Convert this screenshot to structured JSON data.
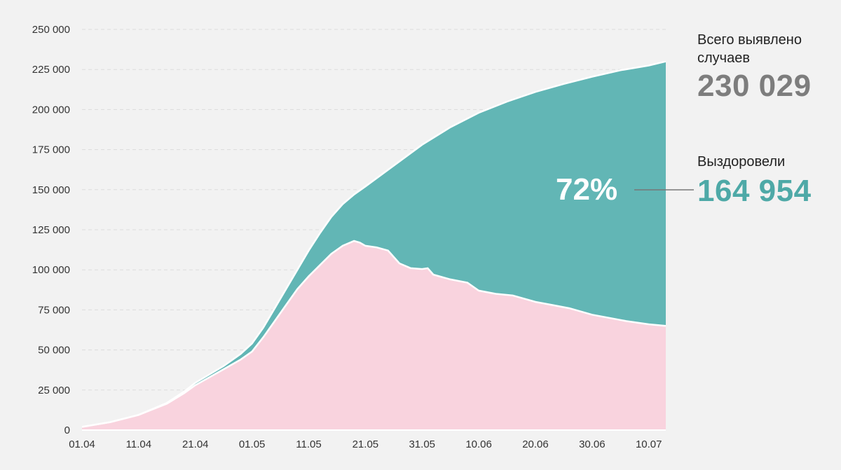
{
  "colors": {
    "background": "#f2f2f2",
    "active": "#f9d3de",
    "recovered": "#62b6b5",
    "total_text": "#7d7d7d",
    "recovered_text": "#4ea9a7",
    "grid": "#ffffff"
  },
  "summary": {
    "total_label": "Всего выявлено случаев",
    "total_value": "230 029",
    "recovered_label": "Выздоровели",
    "recovered_value": "164 954",
    "recovered_pct": "72%"
  },
  "chart_data": {
    "type": "area",
    "stacked": true,
    "ylim": [
      0,
      250000
    ],
    "grid": true,
    "y_ticks": [
      0,
      25000,
      50000,
      75000,
      100000,
      125000,
      150000,
      175000,
      200000,
      225000,
      250000
    ],
    "y_tick_labels": [
      "0",
      "25 000",
      "50 000",
      "75 000",
      "100 000",
      "125 000",
      "150 000",
      "175 000",
      "200 000",
      "225 000",
      "250 000"
    ],
    "x_tick_labels": [
      "01.04",
      "11.04",
      "21.04",
      "01.05",
      "11.05",
      "21.05",
      "31.05",
      "10.06",
      "20.06",
      "30.06",
      "10.07"
    ],
    "x_tick_positions": [
      0,
      10,
      20,
      30,
      40,
      50,
      60,
      70,
      80,
      90,
      100
    ],
    "x_range": [
      0,
      103
    ],
    "series": [
      {
        "key": "active",
        "points": [
          [
            0,
            2000
          ],
          [
            5,
            5000
          ],
          [
            10,
            9500
          ],
          [
            15,
            16500
          ],
          [
            18,
            23000
          ],
          [
            20,
            28000
          ],
          [
            25,
            38000
          ],
          [
            28,
            44000
          ],
          [
            30,
            49000
          ],
          [
            32,
            58000
          ],
          [
            34,
            68000
          ],
          [
            36,
            78000
          ],
          [
            38,
            88000
          ],
          [
            40,
            96000
          ],
          [
            42,
            103000
          ],
          [
            44,
            110000
          ],
          [
            46,
            115000
          ],
          [
            48,
            118000
          ],
          [
            49,
            117000
          ],
          [
            50,
            115000
          ],
          [
            52,
            114000
          ],
          [
            54,
            112000
          ],
          [
            56,
            104000
          ],
          [
            58,
            101000
          ],
          [
            60,
            100500
          ],
          [
            61,
            101000
          ],
          [
            62,
            97000
          ],
          [
            65,
            94000
          ],
          [
            68,
            92000
          ],
          [
            70,
            87000
          ],
          [
            73,
            85000
          ],
          [
            76,
            84000
          ],
          [
            80,
            80000
          ],
          [
            83,
            78000
          ],
          [
            86,
            76000
          ],
          [
            90,
            72000
          ],
          [
            93,
            70000
          ],
          [
            96,
            68000
          ],
          [
            100,
            66000
          ],
          [
            103,
            65000
          ]
        ]
      },
      {
        "key": "total",
        "points": [
          [
            0,
            2000
          ],
          [
            5,
            5000
          ],
          [
            10,
            9500
          ],
          [
            15,
            17000
          ],
          [
            18,
            24000
          ],
          [
            20,
            29500
          ],
          [
            25,
            40000
          ],
          [
            28,
            47500
          ],
          [
            30,
            54000
          ],
          [
            32,
            64000
          ],
          [
            34,
            76000
          ],
          [
            36,
            88000
          ],
          [
            38,
            100000
          ],
          [
            40,
            112000
          ],
          [
            42,
            123000
          ],
          [
            44,
            133000
          ],
          [
            46,
            141000
          ],
          [
            48,
            147000
          ],
          [
            50,
            152000
          ],
          [
            55,
            165000
          ],
          [
            60,
            178000
          ],
          [
            65,
            189000
          ],
          [
            70,
            198000
          ],
          [
            75,
            205000
          ],
          [
            80,
            211000
          ],
          [
            85,
            216000
          ],
          [
            90,
            220500
          ],
          [
            95,
            224500
          ],
          [
            100,
            227500
          ],
          [
            103,
            230029
          ]
        ]
      }
    ]
  }
}
